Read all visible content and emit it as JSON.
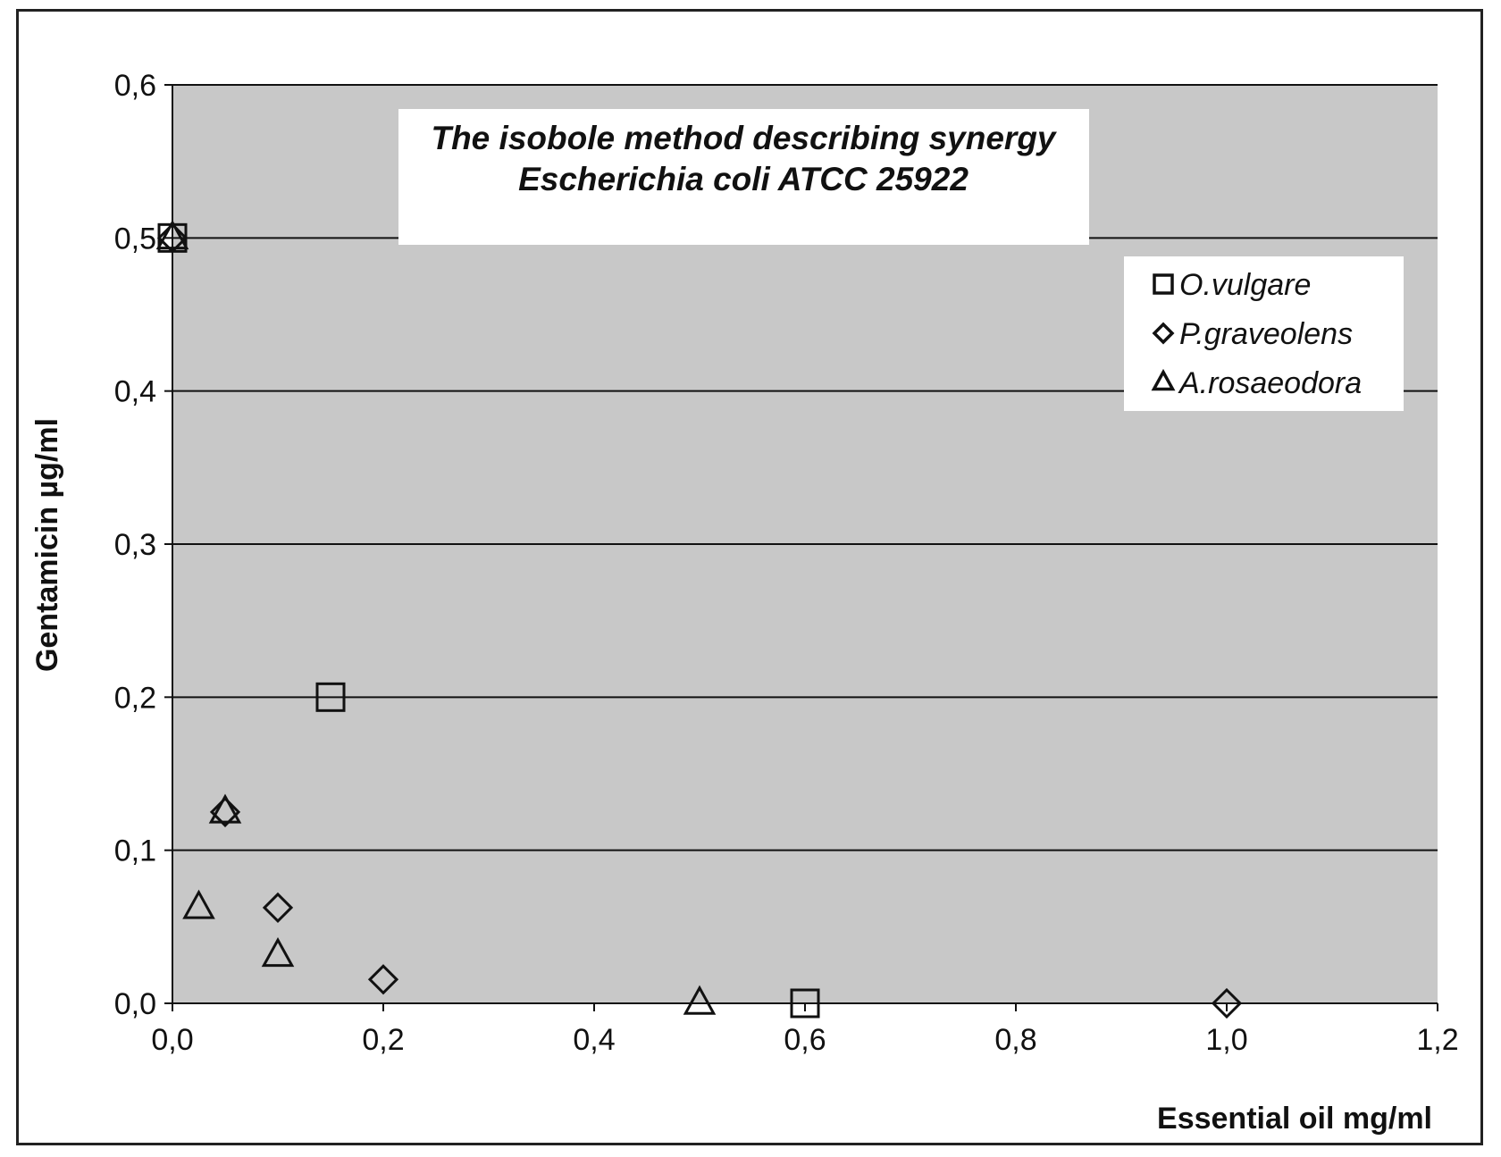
{
  "chart_data": {
    "type": "scatter",
    "title": "The isobole method describing synergy",
    "subtitle": "Escherichia coli ATCC 25922",
    "xlabel": "Essential oil mg/ml",
    "ylabel": "Gentamicin µg/ml",
    "xlim": [
      0,
      1.2
    ],
    "ylim": [
      0,
      0.6
    ],
    "x_ticks": [
      0,
      0.2,
      0.4,
      0.6,
      0.8,
      1.0,
      1.2
    ],
    "y_ticks": [
      0,
      0.1,
      0.2,
      0.3,
      0.4,
      0.5,
      0.6
    ],
    "x_tick_labels": [
      "0,0",
      "0,2",
      "0,4",
      "0,6",
      "0,8",
      "1,0",
      "1,2"
    ],
    "y_tick_labels": [
      "0,0",
      "0,1",
      "0,2",
      "0,3",
      "0,4",
      "0,5",
      "0,6"
    ],
    "grid": "horizontal",
    "legend_position": "top-right",
    "plot_background": "#c8c8c8",
    "series": [
      {
        "name": "O.vulgare",
        "marker": "square",
        "x": [
          0.0,
          0.15,
          0.6
        ],
        "y": [
          0.5,
          0.2,
          0.0
        ]
      },
      {
        "name": "P.graveolens",
        "marker": "diamond",
        "x": [
          0.0,
          0.05,
          0.1,
          0.2,
          1.0
        ],
        "y": [
          0.5,
          0.125,
          0.0625,
          0.0156,
          0.0
        ]
      },
      {
        "name": "A.rosaeodora",
        "marker": "triangle",
        "x": [
          0.0,
          0.05,
          0.025,
          0.1,
          0.5
        ],
        "y": [
          0.5,
          0.125,
          0.0625,
          0.0313,
          0.0
        ]
      }
    ]
  }
}
